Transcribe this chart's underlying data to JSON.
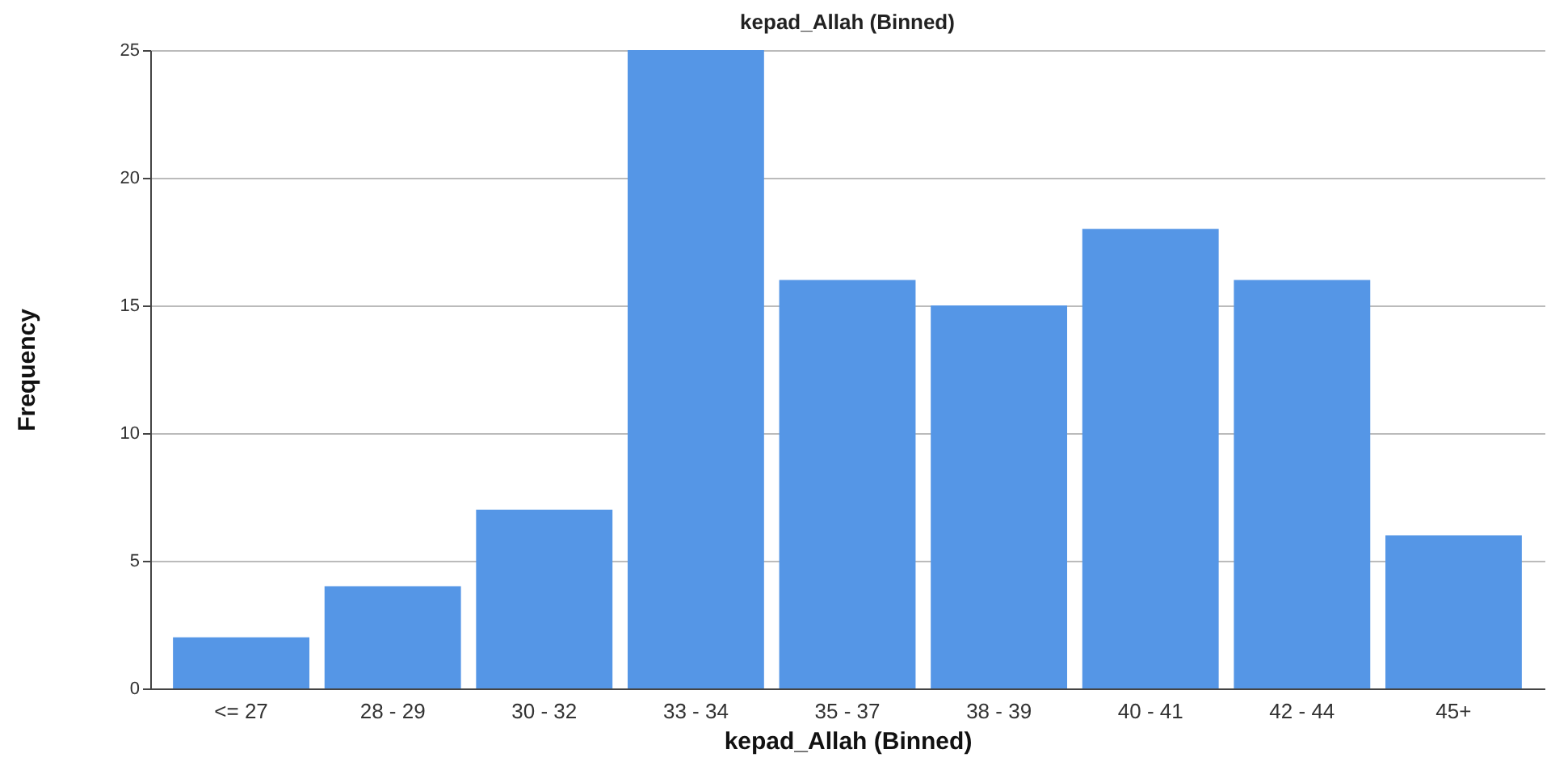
{
  "chart_data": {
    "type": "bar",
    "title": "kepad_Allah (Binned)",
    "xlabel": "kepad_Allah (Binned)",
    "ylabel": "Frequency",
    "categories": [
      "<= 27",
      "28 - 29",
      "30 - 32",
      "33 - 34",
      "35 - 37",
      "38 - 39",
      "40 - 41",
      "42 - 44",
      "45+"
    ],
    "values": [
      2,
      4,
      7,
      25,
      16,
      15,
      18,
      16,
      6
    ],
    "color": "#5596e6",
    "ylim": [
      0,
      25
    ],
    "yticks": [
      0,
      5,
      10,
      15,
      20,
      25
    ],
    "grid": "y"
  }
}
